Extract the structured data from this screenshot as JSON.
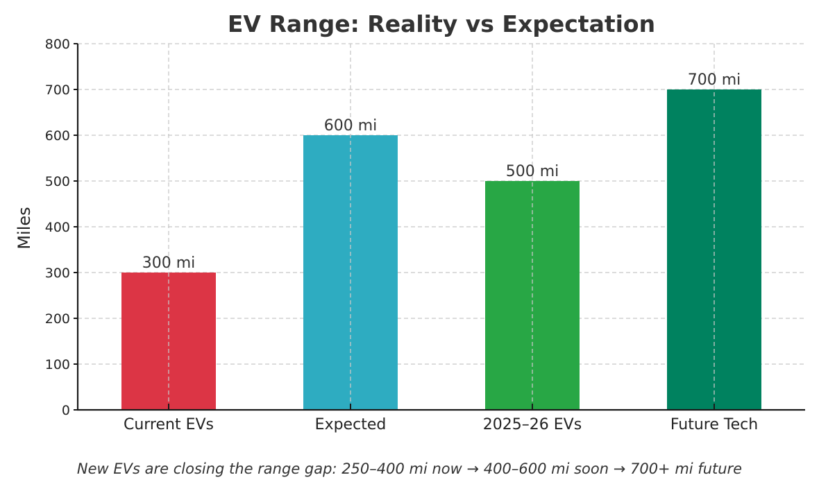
{
  "chart_data": {
    "type": "bar",
    "title": "EV Range: Reality vs Expectation",
    "xlabel": "",
    "ylabel": "Miles",
    "categories": [
      "Current EVs",
      "Expected",
      "2025–26 EVs",
      "Future Tech"
    ],
    "values": [
      300,
      600,
      500,
      700
    ],
    "data_labels": [
      "300 mi",
      "600 mi",
      "500 mi",
      "700 mi"
    ],
    "colors": [
      "#dc3545",
      "#2eacc1",
      "#28a745",
      "#00825f"
    ],
    "ylim": [
      0,
      800
    ],
    "yticks": [
      0,
      100,
      200,
      300,
      400,
      500,
      600,
      700,
      800
    ],
    "grid": true,
    "caption": "New EVs are closing the range gap: 250–400 mi now → 400–600 mi soon → 700+ mi future"
  }
}
